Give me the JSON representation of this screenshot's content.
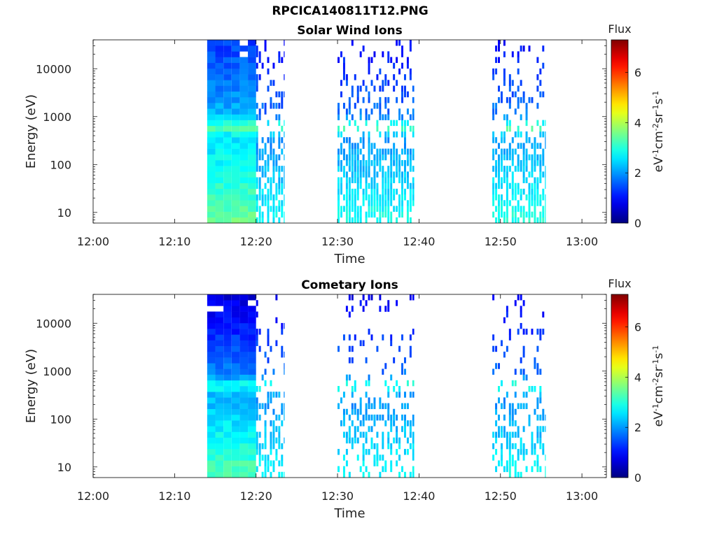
{
  "page": {
    "title": "RPCICA140811T12.PNG"
  },
  "chart_data": [
    {
      "type": "heatmap",
      "title": "Solar Wind Ions",
      "xlabel": "Time",
      "ylabel": "Energy (eV)",
      "x_ticks": [
        "12:00",
        "12:10",
        "12:20",
        "12:30",
        "12:40",
        "12:50",
        "13:00"
      ],
      "xlim": [
        "12:00",
        "13:03"
      ],
      "y_scale": "log",
      "y_ticks": [
        10,
        100,
        1000,
        10000
      ],
      "ylim": [
        6,
        40000
      ],
      "colorbar": {
        "title": "Flux",
        "label": "eV-1cm-2sr-1s-1",
        "ticks": [
          0,
          2,
          4,
          6
        ],
        "range": [
          0,
          7.3
        ],
        "colormap": "jet"
      },
      "observation_windows": [
        {
          "start": "12:14",
          "end": "12:20",
          "mode": "continuous",
          "peak_energy_ev": 600,
          "peak_flux": 3.6,
          "low_energy_flux": 3.5,
          "high_energy_flux": 1.3,
          "density": 1.0
        },
        {
          "start": "12:20",
          "end": "12:23.5",
          "mode": "sparse",
          "peak_energy_ev": 600,
          "peak_flux": 3.5,
          "low_energy_flux": 2.8,
          "high_energy_flux": 0.9,
          "density": 0.6
        },
        {
          "start": "12:30",
          "end": "12:39.5",
          "mode": "sparse",
          "peak_energy_ev": 600,
          "peak_flux": 3.6,
          "low_energy_flux": 2.9,
          "high_energy_flux": 0.9,
          "density": 0.55
        },
        {
          "start": "12:49",
          "end": "12:55.5",
          "mode": "sparse",
          "peak_energy_ev": 600,
          "peak_flux": 3.6,
          "low_energy_flux": 3.0,
          "high_energy_flux": 0.9,
          "density": 0.55
        }
      ]
    },
    {
      "type": "heatmap",
      "title": "Cometary Ions",
      "xlabel": "Time",
      "ylabel": "Energy (eV)",
      "x_ticks": [
        "12:00",
        "12:10",
        "12:20",
        "12:30",
        "12:40",
        "12:50",
        "13:00"
      ],
      "xlim": [
        "12:00",
        "13:03"
      ],
      "y_scale": "log",
      "y_ticks": [
        10,
        100,
        1000,
        10000
      ],
      "ylim": [
        6,
        40000
      ],
      "colorbar": {
        "title": "Flux",
        "label": "eV-1cm-2sr-1s-1",
        "ticks": [
          0,
          2,
          4,
          6
        ],
        "range": [
          0,
          7.3
        ],
        "colormap": "jet"
      },
      "observation_windows": [
        {
          "start": "12:14",
          "end": "12:20",
          "mode": "continuous",
          "peak_energy_ev": 500,
          "peak_flux": 3.0,
          "low_energy_flux": 3.4,
          "high_energy_flux": 0.6,
          "density": 1.0
        },
        {
          "start": "12:20",
          "end": "12:23.5",
          "mode": "sparse",
          "peak_energy_ev": 500,
          "peak_flux": 3.2,
          "low_energy_flux": 2.8,
          "high_energy_flux": 0.8,
          "density": 0.4
        },
        {
          "start": "12:30",
          "end": "12:39.5",
          "mode": "sparse",
          "peak_energy_ev": 500,
          "peak_flux": 3.3,
          "low_energy_flux": 2.8,
          "high_energy_flux": 0.8,
          "density": 0.3
        },
        {
          "start": "12:49",
          "end": "12:55.5",
          "mode": "sparse",
          "peak_energy_ev": 500,
          "peak_flux": 3.3,
          "low_energy_flux": 2.8,
          "high_energy_flux": 0.8,
          "density": 0.3
        }
      ]
    }
  ]
}
